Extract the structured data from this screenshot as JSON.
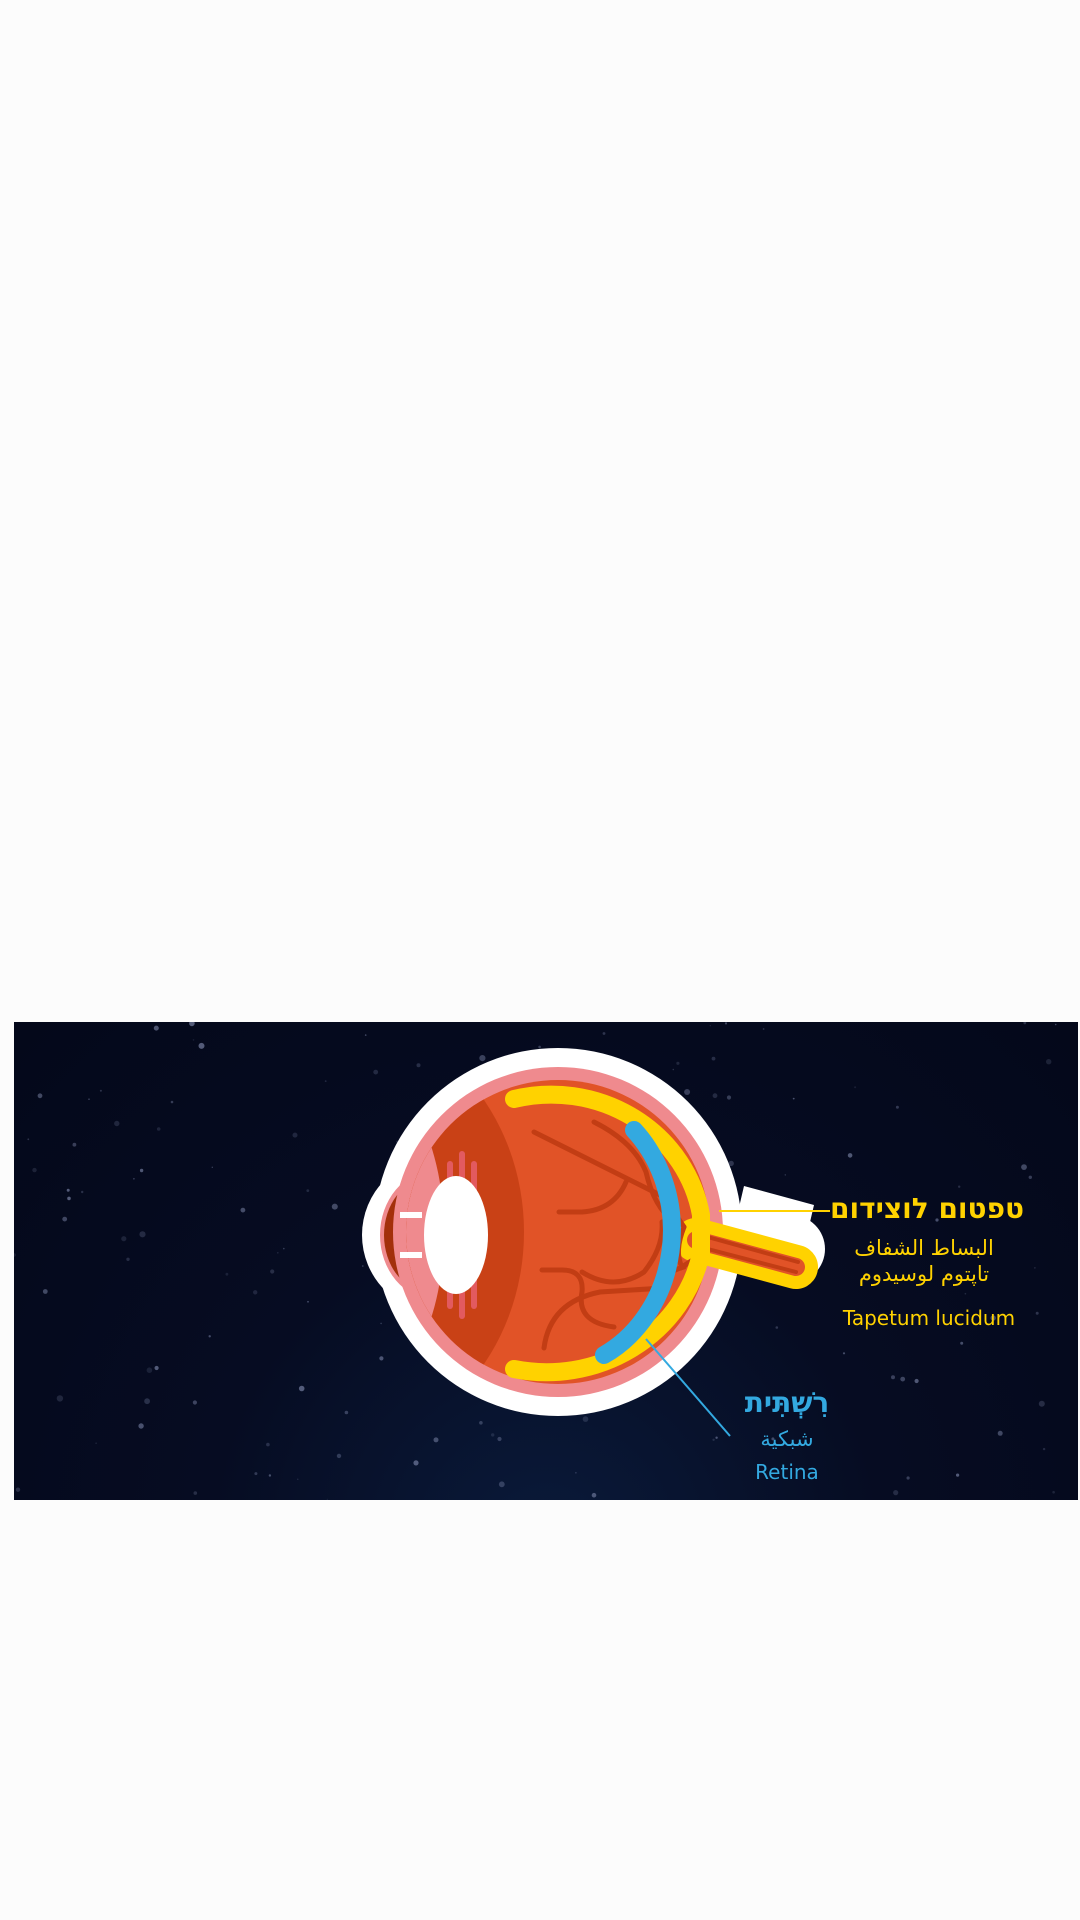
{
  "labels": {
    "tapetum": {
      "hebrew": "טפטום לוצידום",
      "arabic_line1": "البساط الشفاف",
      "arabic_line2": "تاپتوم لوسيدوم",
      "english": "Tapetum lucidum",
      "color": "#ffd200"
    },
    "retina": {
      "hebrew": "רִשְׁתִּית",
      "arabic": "شبكية",
      "english": "Retina",
      "color": "#33a9e0"
    }
  },
  "colors": {
    "background": "#060c22",
    "outline": "#ffffff",
    "sclera": "#ef8a8e",
    "interior": "#e15327",
    "vitreous_shadow": "#c94116",
    "vessels": "#c23d14",
    "iris": "#a3300b",
    "tapetum": "#ffd200",
    "retina": "#33a9e0"
  }
}
